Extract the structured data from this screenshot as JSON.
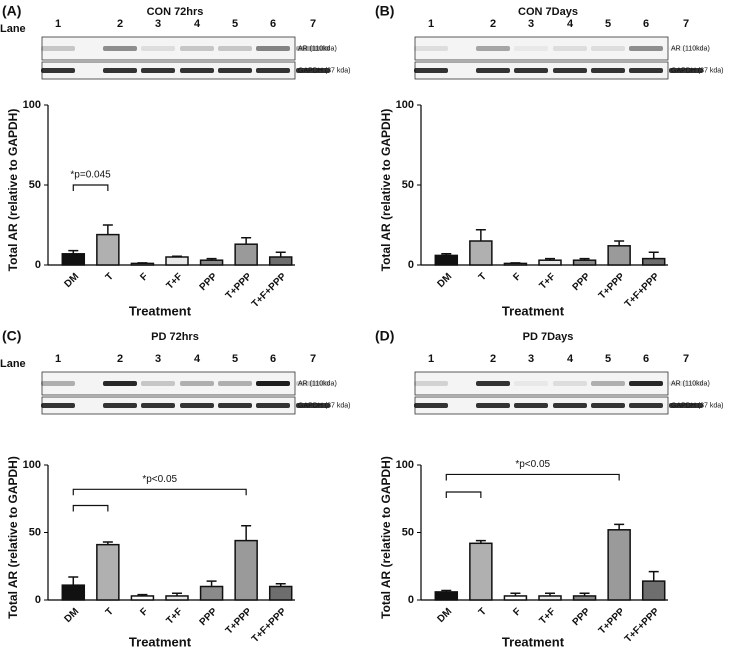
{
  "chart_data": [
    {
      "type": "bar",
      "panel": "(A)",
      "title": "CON 72hrs",
      "lane_label": "Lane",
      "lanes": [
        "1",
        "2",
        "3",
        "4",
        "5",
        "6",
        "7"
      ],
      "blot_labels": [
        "AR (110kda)",
        "GAPDH (37 kda)"
      ],
      "ylabel": "Total AR (relative to GAPDH)",
      "xlabel": "Treatment",
      "categories": [
        "DM",
        "T",
        "F",
        "T+F",
        "PPP",
        "T+PPP",
        "T+F+PPP"
      ],
      "values": [
        7,
        19,
        1,
        5,
        3,
        13,
        5
      ],
      "errors": [
        2,
        6,
        0.3,
        0.5,
        1,
        4,
        3
      ],
      "colors": [
        "#111111",
        "#b0b0b0",
        "#ffffff",
        "#e8e8e8",
        "#8a8a8a",
        "#9a9a9a",
        "#6e6e6e"
      ],
      "ylim": [
        0,
        100
      ],
      "yticks": [
        0,
        50,
        100
      ],
      "annotation": "*p=0.045"
    },
    {
      "type": "bar",
      "panel": "(B)",
      "title": "CON 7Days",
      "lanes": [
        "1",
        "2",
        "3",
        "4",
        "5",
        "6",
        "7"
      ],
      "blot_labels": [
        "AR (110kda)",
        "GAPDH (37 kda)"
      ],
      "ylabel": "Total AR (relative to GAPDH)",
      "xlabel": "Treatment",
      "categories": [
        "DM",
        "T",
        "F",
        "T+F",
        "PPP",
        "T+PPP",
        "T+F+PPP"
      ],
      "values": [
        6,
        15,
        1,
        3,
        3,
        12,
        4
      ],
      "errors": [
        1,
        7,
        0.3,
        1,
        1,
        3,
        4
      ],
      "colors": [
        "#111111",
        "#b0b0b0",
        "#ffffff",
        "#e8e8e8",
        "#8a8a8a",
        "#9a9a9a",
        "#6e6e6e"
      ],
      "ylim": [
        0,
        100
      ],
      "yticks": [
        0,
        50,
        100
      ]
    },
    {
      "type": "bar",
      "panel": "(C)",
      "title": "PD 72hrs",
      "lane_label": "Lane",
      "lanes": [
        "1",
        "2",
        "3",
        "4",
        "5",
        "6",
        "7"
      ],
      "blot_labels": [
        "AR (110kda)",
        "GAPDH (37 kda)"
      ],
      "ylabel": "Total AR (relative to GAPDH)",
      "xlabel": "Treatment",
      "categories": [
        "DM",
        "T",
        "F",
        "T+F",
        "PPP",
        "T+PPP",
        "T+F+PPP"
      ],
      "values": [
        11,
        41,
        3,
        3,
        10,
        44,
        10
      ],
      "errors": [
        6,
        2,
        1,
        2,
        4,
        11,
        2
      ],
      "colors": [
        "#111111",
        "#b0b0b0",
        "#ffffff",
        "#e8e8e8",
        "#8a8a8a",
        "#9a9a9a",
        "#6e6e6e"
      ],
      "ylim": [
        0,
        100
      ],
      "yticks": [
        0,
        50,
        100
      ],
      "annotation": "*p<0.05"
    },
    {
      "type": "bar",
      "panel": "(D)",
      "title": "PD 7Days",
      "lanes": [
        "1",
        "2",
        "3",
        "4",
        "5",
        "6",
        "7"
      ],
      "blot_labels": [
        "AR (110kda)",
        "GAPDH (37 kda)"
      ],
      "ylabel": "Total AR (relative to GAPDH)",
      "xlabel": "Treatment",
      "categories": [
        "DM",
        "T",
        "F",
        "T+F",
        "PPP",
        "T+PPP",
        "T+F+PPP"
      ],
      "values": [
        6,
        42,
        3,
        3,
        3,
        52,
        14
      ],
      "errors": [
        1,
        2,
        2,
        2,
        2,
        4,
        7
      ],
      "colors": [
        "#111111",
        "#b0b0b0",
        "#ffffff",
        "#e8e8e8",
        "#8a8a8a",
        "#9a9a9a",
        "#6e6e6e"
      ],
      "ylim": [
        0,
        100
      ],
      "yticks": [
        0,
        50,
        100
      ],
      "annotation": "*p<0.05"
    }
  ]
}
